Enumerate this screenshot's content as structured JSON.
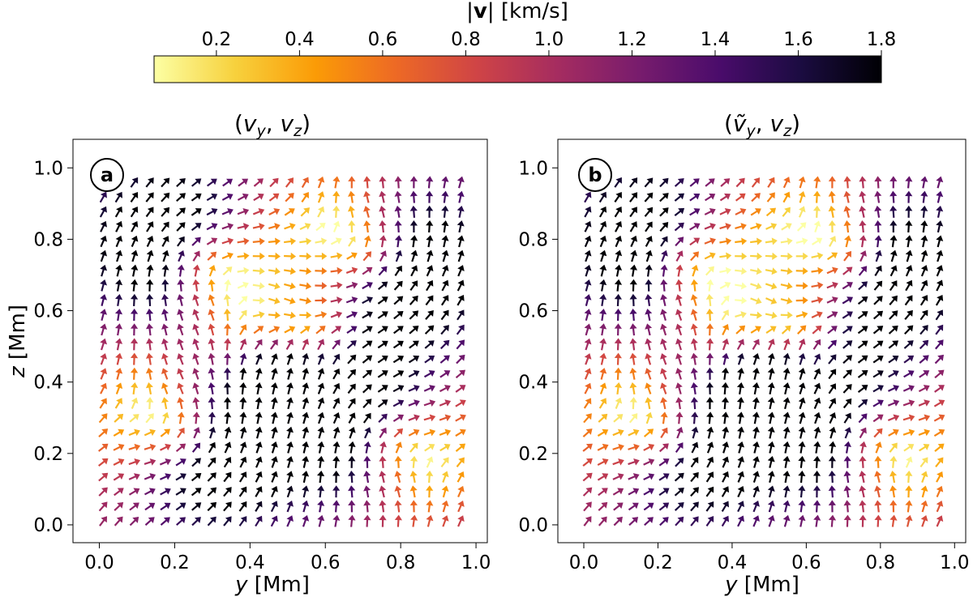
{
  "colorbar": {
    "label": "|v| [km/s]",
    "range": [
      0.05,
      1.8
    ],
    "ticks": [
      "0.2",
      "0.4",
      "0.6",
      "0.8",
      "1.0",
      "1.2",
      "1.4",
      "1.6",
      "1.8"
    ],
    "colormap": "inferno_r",
    "stops": [
      "#fcffa4",
      "#f7d13d",
      "#fb9b06",
      "#ed6925",
      "#cf4446",
      "#a52c60",
      "#781c6d",
      "#4a0c6b",
      "#1b0c41",
      "#000004"
    ]
  },
  "chart_data": [
    {
      "type": "quiver",
      "panel_letter": "a",
      "title": "(v_y, v_z)",
      "xlabel": "y [Mm]",
      "ylabel": "z [Mm]",
      "xlim": [
        -0.07,
        1.03
      ],
      "ylim": [
        -0.05,
        1.08
      ],
      "xticks": [
        "0.0",
        "0.2",
        "0.4",
        "0.6",
        "0.8",
        "1.0"
      ],
      "yticks": [
        "0.0",
        "0.2",
        "0.4",
        "0.6",
        "0.8",
        "1.0"
      ],
      "grid_points": [
        24,
        24
      ],
      "grid_spacing": 0.04125,
      "grid_start": [
        0.01,
        0.01
      ],
      "field": "uniform diagonal drift plus four cellular vortices centred near (0.25,0.75), (0.75,0.75), (0.25,0.25), (0.75,0.25)"
    },
    {
      "type": "quiver",
      "panel_letter": "b",
      "title": "(ṽ_y, v_z)",
      "xlabel": "y [Mm]",
      "ylabel": "",
      "xlim": [
        -0.07,
        1.03
      ],
      "ylim": [
        -0.05,
        1.08
      ],
      "xticks": [
        "0.0",
        "0.2",
        "0.4",
        "0.6",
        "0.8",
        "1.0"
      ],
      "yticks": [
        "0.0",
        "0.2",
        "0.4",
        "0.6",
        "0.8",
        "1.0"
      ],
      "grid_points": [
        24,
        24
      ],
      "grid_spacing": 0.04125,
      "grid_start": [
        0.01,
        0.01
      ],
      "field": "same as panel a with a slightly modified horizontal component"
    }
  ]
}
